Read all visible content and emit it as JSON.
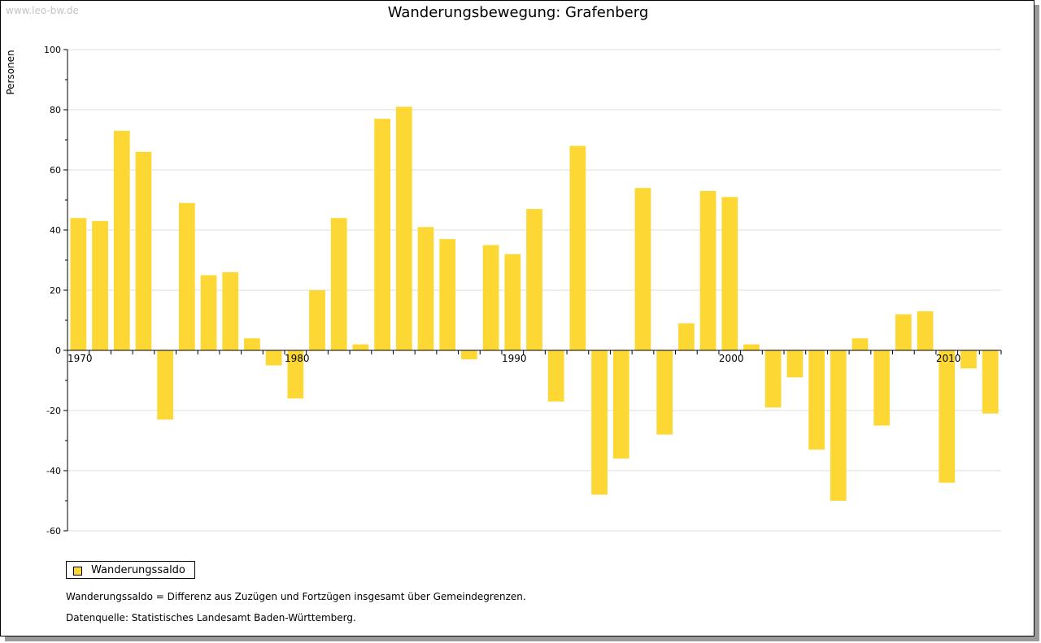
{
  "watermark": "www.leo-bw.de",
  "chart_data": {
    "type": "bar",
    "title": "Wanderungsbewegung: Grafenberg",
    "ylabel": "Personen",
    "xlabel": "",
    "ylim": [
      -60,
      100
    ],
    "yticks": [
      -60,
      -40,
      -20,
      0,
      20,
      40,
      60,
      80,
      100
    ],
    "xticks": [
      1970,
      1980,
      1990,
      2000,
      2010
    ],
    "grid": true,
    "legend_position": "bottom-left",
    "bar_color": "#fdd835",
    "series": [
      {
        "name": "Wanderungssaldo",
        "x": [
          1970,
          1971,
          1972,
          1973,
          1974,
          1975,
          1976,
          1977,
          1978,
          1979,
          1980,
          1981,
          1982,
          1983,
          1984,
          1985,
          1986,
          1987,
          1988,
          1989,
          1990,
          1991,
          1992,
          1993,
          1994,
          1995,
          1996,
          1997,
          1998,
          1999,
          2000,
          2001,
          2002,
          2003,
          2004,
          2005,
          2006,
          2007,
          2008,
          2009,
          2010,
          2011,
          2012
        ],
        "values": [
          44,
          43,
          73,
          66,
          -23,
          49,
          25,
          26,
          4,
          -5,
          -16,
          20,
          44,
          2,
          77,
          81,
          41,
          37,
          -3,
          35,
          32,
          47,
          -17,
          68,
          -48,
          -36,
          54,
          -28,
          9,
          53,
          51,
          2,
          -19,
          -9,
          -33,
          -50,
          4,
          -25,
          12,
          13,
          -44,
          -6,
          -21
        ]
      }
    ]
  },
  "legend": {
    "label": "Wanderungssaldo"
  },
  "notes": {
    "definition": "Wanderungssaldo = Differenz aus Zuzügen und Fortzügen insgesamt über Gemeindegrenzen.",
    "source": "Datenquelle: Statistisches Landesamt Baden-Württemberg."
  }
}
